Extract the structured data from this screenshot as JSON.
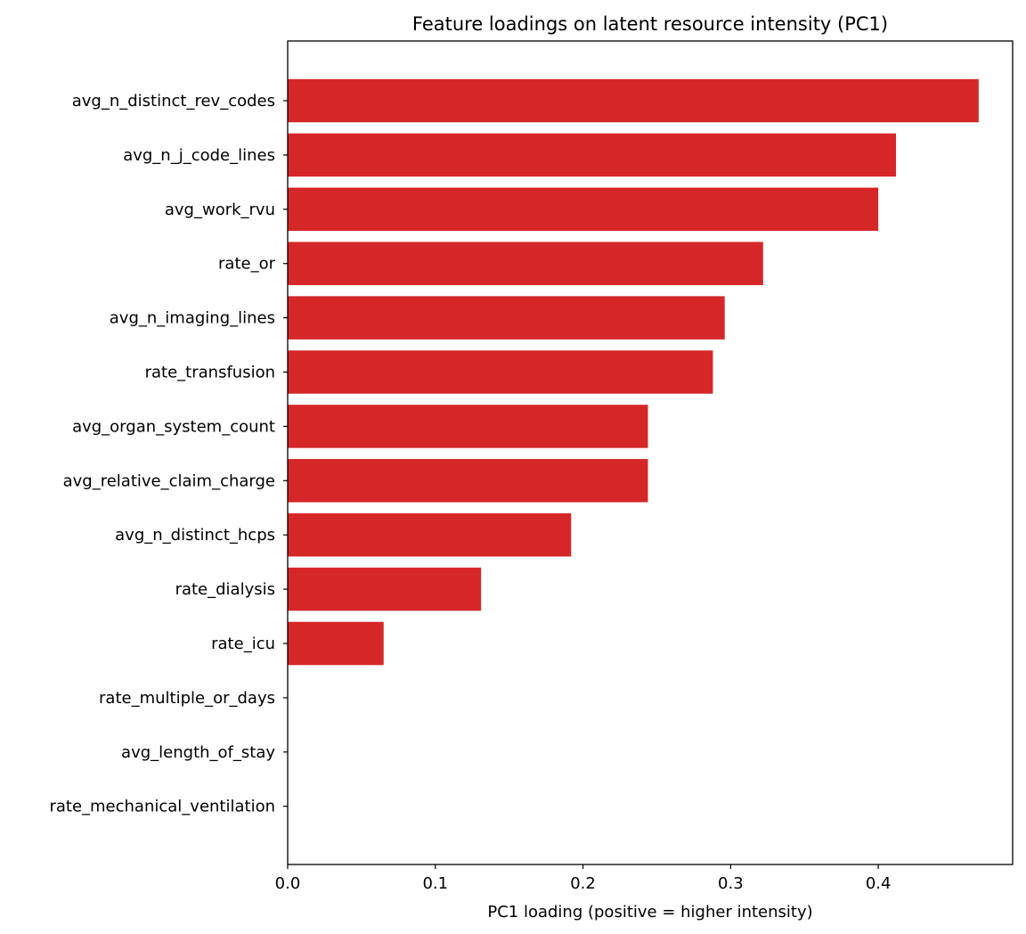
{
  "chart_data": {
    "type": "bar",
    "orientation": "horizontal",
    "title": "Feature loadings on latent resource intensity (PC1)",
    "xlabel": "PC1 loading (positive = higher intensity)",
    "ylabel": "",
    "categories": [
      "avg_n_distinct_rev_codes",
      "avg_n_j_code_lines",
      "avg_work_rvu",
      "rate_or",
      "avg_n_imaging_lines",
      "rate_transfusion",
      "avg_organ_system_count",
      "avg_relative_claim_charge",
      "avg_n_distinct_hcps",
      "rate_dialysis",
      "rate_icu",
      "rate_multiple_or_days",
      "avg_length_of_stay",
      "rate_mechanical_ventilation"
    ],
    "values": [
      0.468,
      0.412,
      0.4,
      0.322,
      0.296,
      0.288,
      0.244,
      0.244,
      0.192,
      0.131,
      0.065,
      0.0,
      0.0,
      0.0
    ],
    "xlim": [
      0,
      0.491
    ],
    "xticks": [
      "0.0",
      "0.1",
      "0.2",
      "0.3",
      "0.4"
    ],
    "bar_color": "#d62728",
    "grid": false
  }
}
